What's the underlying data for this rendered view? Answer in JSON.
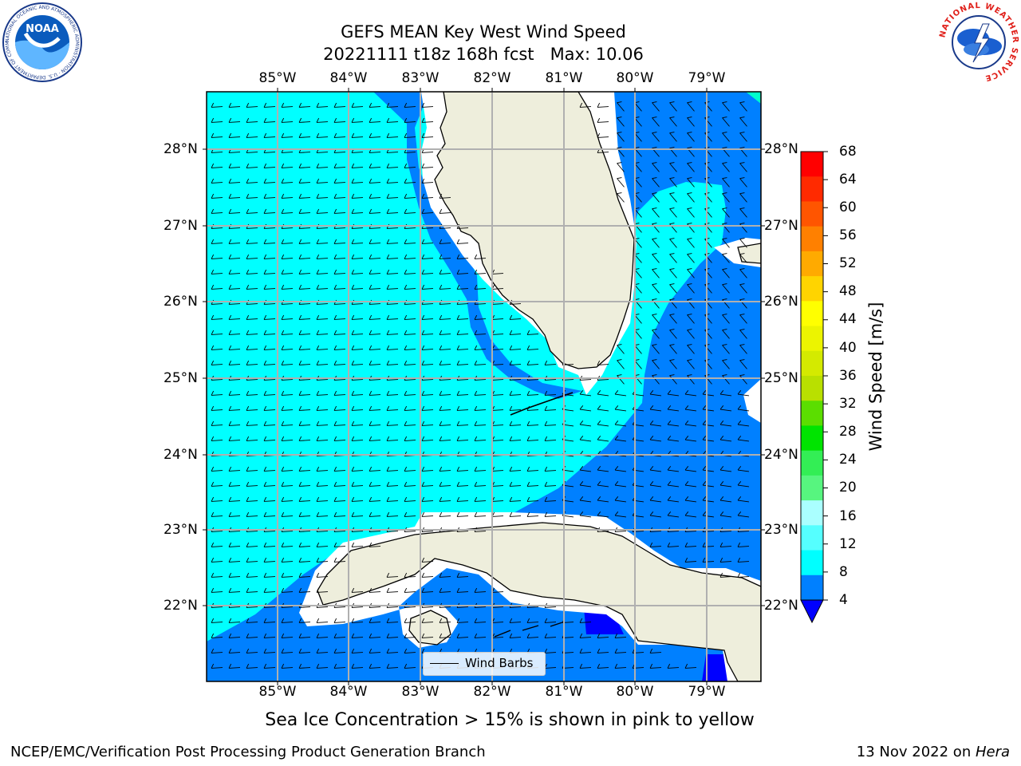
{
  "header": {
    "title_line1": "GEFS MEAN Key West Wind Speed",
    "title_line2": "20221111 t18z 168h fcst   Max: 10.06"
  },
  "logos": {
    "noaa_text": "NOAA",
    "noaa_ring_text": "NATIONAL OCEANIC AND ATMOSPHERIC ADMINISTRATION · U.S. DEPARTMENT OF COMMERCE",
    "nws_ring_text": "NATIONAL WEATHER SERVICE"
  },
  "map": {
    "lon_labels": [
      "85°W",
      "84°W",
      "83°W",
      "82°W",
      "81°W",
      "80°W",
      "79°W"
    ],
    "lat_labels": [
      "28°N",
      "27°N",
      "26°N",
      "25°N",
      "24°N",
      "23°N",
      "22°N"
    ],
    "colors": {
      "land": "#eeeedc",
      "band_4_8": "#0080ff",
      "band_8_12": "#00ffff",
      "band_under_4": "#0000ff",
      "no_data": "#ffffff",
      "grid": "#b0b0b0"
    }
  },
  "chart_data": {
    "type": "heatmap",
    "variable": "Wind Speed",
    "unit": "m/s",
    "max_value": 10.06,
    "lon_range": [
      -86.0,
      -78.3
    ],
    "lat_range": [
      21.0,
      28.8
    ]
  },
  "colorbar": {
    "label": "Wind Speed [m/s]",
    "ticks": [
      "68",
      "64",
      "60",
      "56",
      "52",
      "48",
      "44",
      "40",
      "36",
      "32",
      "28",
      "24",
      "20",
      "16",
      "12",
      "8",
      "4"
    ],
    "colors_top_to_bottom": [
      "#ff0000",
      "#ff2a00",
      "#ff5500",
      "#ff8000",
      "#ffaa00",
      "#ffd400",
      "#ffff00",
      "#ecf400",
      "#d4ea00",
      "#b9e000",
      "#5bde00",
      "#00e400",
      "#33ee55",
      "#57f57f",
      "#aaffff",
      "#55ffff",
      "#00ffff",
      "#0080ff"
    ],
    "extend_color": "#0000ff"
  },
  "legend": {
    "label": "Wind Barbs"
  },
  "caption": "Sea Ice Concentration > 15% is shown in pink to yellow",
  "footer": {
    "left": "NCEP/EMC/Verification Post Processing Product Generation Branch",
    "right_prefix": "13 Nov 2022 on ",
    "right_host": "Hera"
  }
}
